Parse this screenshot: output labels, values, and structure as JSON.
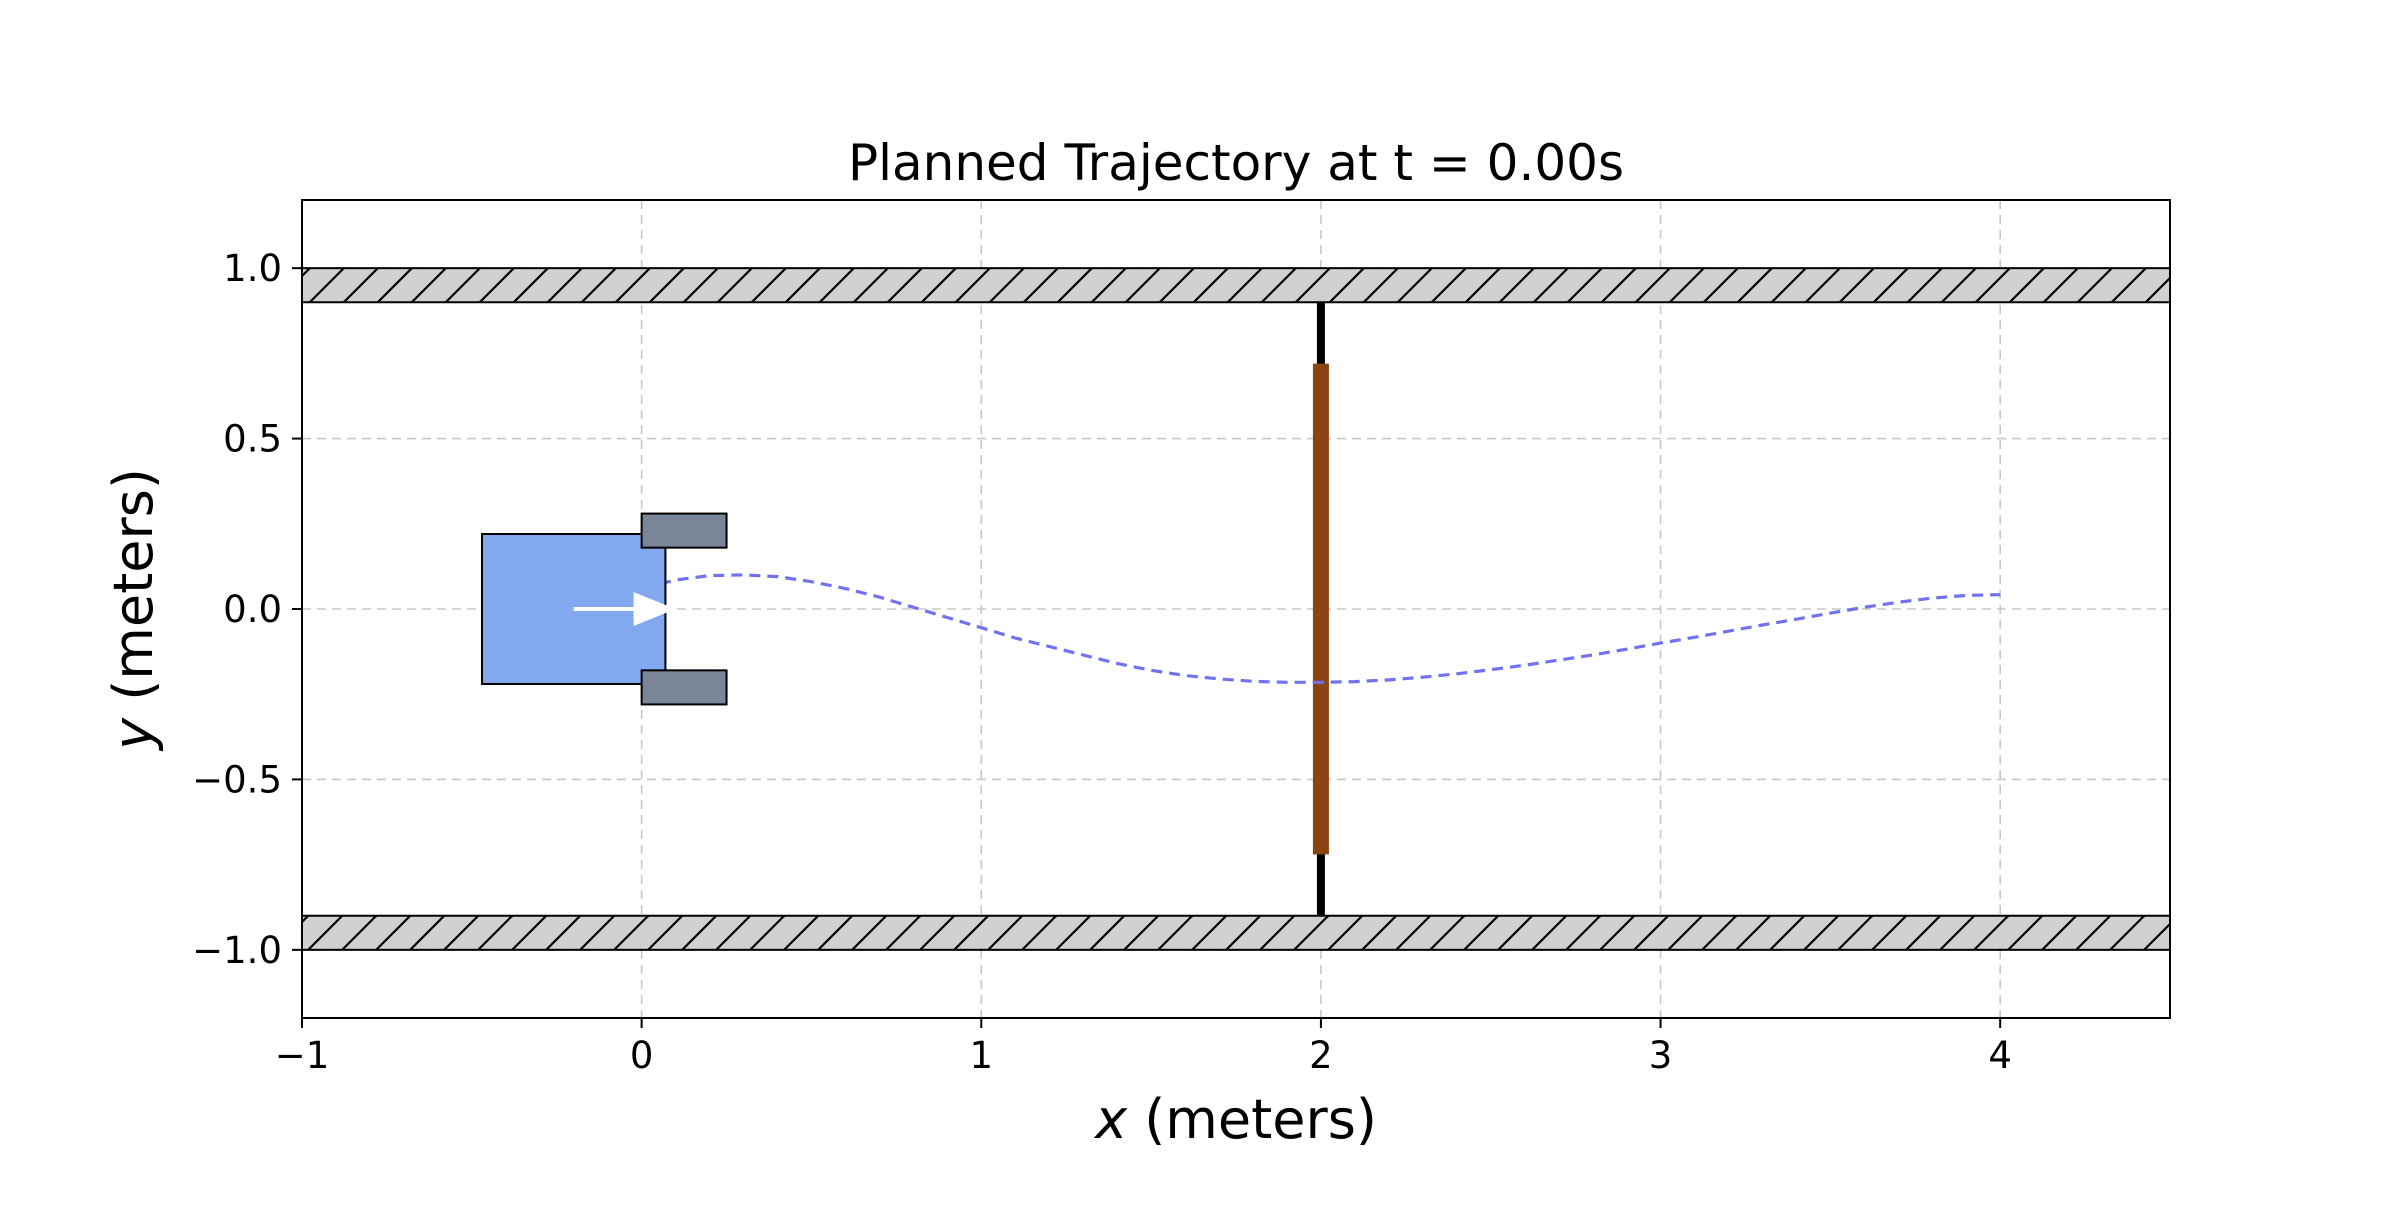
{
  "chart_data": {
    "type": "line",
    "title": "Planned Trajectory at t = 0.00s",
    "xlabel": "x (meters)",
    "ylabel": "y (meters)",
    "xlabel_var": "x",
    "xlabel_unit": " (meters)",
    "ylabel_var": "y",
    "ylabel_unit": " (meters)",
    "xlim": [
      -1,
      4.5
    ],
    "ylim": [
      -1.2,
      1.2
    ],
    "xticks": [
      -1,
      0,
      1,
      2,
      3,
      4
    ],
    "yticks": [
      -1.0,
      -0.5,
      0.0,
      0.5,
      1.0
    ],
    "xtick_labels": [
      "−1",
      "0",
      "1",
      "2",
      "3",
      "4"
    ],
    "ytick_labels": [
      "−1.0",
      "−0.5",
      "0.0",
      "0.5",
      "1.0"
    ],
    "grid": true,
    "series": [
      {
        "style": "dashed",
        "color": "#7272ee",
        "x": [
          -0.2,
          -0.1,
          0.0,
          0.1,
          0.2,
          0.3,
          0.4,
          0.5,
          0.6,
          0.7,
          0.8,
          0.9,
          1.0,
          1.1,
          1.2,
          1.3,
          1.4,
          1.5,
          1.6,
          1.7,
          1.8,
          1.9,
          2.0,
          2.1,
          2.2,
          2.3,
          2.4,
          2.5,
          2.6,
          2.7,
          2.8,
          2.9,
          3.0,
          3.1,
          3.2,
          3.3,
          3.4,
          3.5,
          3.6,
          3.7,
          3.8,
          3.9,
          4.0
        ],
        "y": [
          0.0,
          0.03,
          0.06,
          0.085,
          0.098,
          0.1,
          0.095,
          0.08,
          0.06,
          0.035,
          0.005,
          -0.025,
          -0.055,
          -0.085,
          -0.11,
          -0.135,
          -0.16,
          -0.18,
          -0.195,
          -0.205,
          -0.212,
          -0.215,
          -0.215,
          -0.213,
          -0.208,
          -0.2,
          -0.19,
          -0.178,
          -0.165,
          -0.15,
          -0.135,
          -0.118,
          -0.1,
          -0.083,
          -0.065,
          -0.047,
          -0.03,
          -0.012,
          0.005,
          0.02,
          0.032,
          0.04,
          0.042
        ]
      }
    ],
    "walls": [
      {
        "y_range": [
          0.9,
          1.0
        ],
        "x_range": [
          -1,
          4.5
        ],
        "fill": "#d0d0d0",
        "hatch": "diagonal"
      },
      {
        "y_range": [
          -1.0,
          -0.9
        ],
        "x_range": [
          -1,
          4.5
        ],
        "fill": "#d0d0d0",
        "hatch": "diagonal"
      }
    ],
    "gate": {
      "x": 2.0,
      "post_y_range": [
        -0.9,
        0.9
      ],
      "post_color": "#000000",
      "bar_y_range": [
        -0.72,
        0.72
      ],
      "bar_color": "#8b4513"
    },
    "robot": {
      "x": 0.0,
      "y": 0.0,
      "heading_deg": 0,
      "body": {
        "x_range": [
          -0.47,
          0.07
        ],
        "y_range": [
          -0.22,
          0.22
        ],
        "color": "#82a8f0"
      },
      "grippers": [
        {
          "x_range": [
            0.0,
            0.25
          ],
          "y_range": [
            0.18,
            0.28
          ],
          "color": "#7a8698"
        },
        {
          "x_range": [
            0.0,
            0.25
          ],
          "y_range": [
            -0.28,
            -0.18
          ],
          "color": "#7a8698"
        }
      ],
      "arrow": {
        "from": [
          -0.2,
          0.0
        ],
        "to": [
          0.1,
          0.0
        ],
        "color": "#ffffff"
      }
    }
  }
}
